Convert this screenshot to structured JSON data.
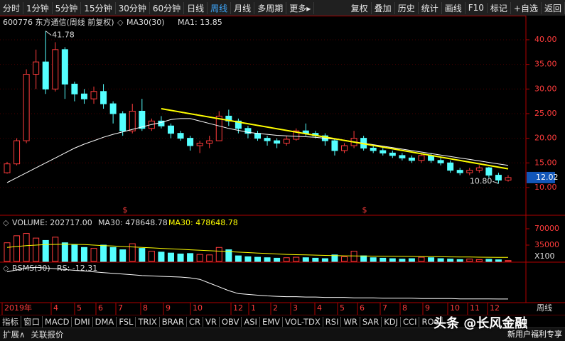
{
  "toolbar": {
    "periods": [
      "分时",
      "1分钟",
      "5分钟",
      "15分钟",
      "30分钟",
      "60分钟",
      "日线",
      "周线",
      "月线",
      "多周期",
      "更多▸"
    ],
    "tools": [
      "复权",
      "叠加",
      "历史",
      "统计",
      "画线",
      "F10",
      "标记",
      "+自选",
      "返回"
    ]
  },
  "chart_data": [
    {
      "type": "candlestick",
      "title": "600776 东方通信(周线 前复权)",
      "ma_title": "MA30(30)",
      "ma_value": "MA1: 13.85",
      "open": [
        13.0,
        14.8,
        19.5,
        33.0,
        35.5,
        30.0,
        38.0,
        31.0,
        29.0,
        28.0,
        29.5,
        27.0,
        25.0,
        21.5,
        25.5,
        22.0,
        23.5,
        22.5,
        21.0,
        20.0,
        18.5,
        19.0,
        19.5,
        24.5,
        23.5,
        22.0,
        21.0,
        20.0,
        19.5,
        19.0,
        19.8,
        21.5,
        21.0,
        20.5,
        19.5,
        17.5,
        18.5,
        20.0,
        18.0,
        17.5,
        17.0,
        16.5,
        16.0,
        15.5,
        16.5,
        15.5,
        15.0,
        13.5,
        13.0,
        13.5,
        14.0,
        12.5,
        11.5
      ],
      "high": [
        15.2,
        20.0,
        34.0,
        38.0,
        41.78,
        39.5,
        38.5,
        31.5,
        30.0,
        30.5,
        31.0,
        27.5,
        25.5,
        27.0,
        28.0,
        24.0,
        24.5,
        23.0,
        21.5,
        20.5,
        19.5,
        20.5,
        25.5,
        25.8,
        24.0,
        22.5,
        21.5,
        20.5,
        20.0,
        20.5,
        22.0,
        23.0,
        21.5,
        21.0,
        20.0,
        19.0,
        21.5,
        20.5,
        18.5,
        18.0,
        17.5,
        17.0,
        16.5,
        17.0,
        17.0,
        16.0,
        15.5,
        14.0,
        14.0,
        14.5,
        14.2,
        13.0,
        12.5
      ],
      "low": [
        12.8,
        14.5,
        19.0,
        30.0,
        29.0,
        29.5,
        28.0,
        27.5,
        27.0,
        27.0,
        26.0,
        23.0,
        20.5,
        21.0,
        21.5,
        21.5,
        22.0,
        20.0,
        19.5,
        17.5,
        17.0,
        18.0,
        19.5,
        22.5,
        21.0,
        20.0,
        19.5,
        18.5,
        18.0,
        18.5,
        19.5,
        20.5,
        20.0,
        18.5,
        16.5,
        17.0,
        18.0,
        17.5,
        17.0,
        16.5,
        16.0,
        15.5,
        15.0,
        15.0,
        15.0,
        14.5,
        13.0,
        12.5,
        12.5,
        13.0,
        12.0,
        10.8,
        11.2
      ],
      "close": [
        14.8,
        19.5,
        33.0,
        35.5,
        30.0,
        38.0,
        31.0,
        29.0,
        28.0,
        29.5,
        27.0,
        25.0,
        21.5,
        25.5,
        22.0,
        23.5,
        22.5,
        21.0,
        20.0,
        18.5,
        19.0,
        19.5,
        24.5,
        23.5,
        22.0,
        21.0,
        20.0,
        19.5,
        19.0,
        19.8,
        21.5,
        21.0,
        20.5,
        19.5,
        17.5,
        18.5,
        20.0,
        18.0,
        17.5,
        17.0,
        16.5,
        16.0,
        15.5,
        16.5,
        15.5,
        15.0,
        13.5,
        13.0,
        13.5,
        14.0,
        12.5,
        11.5,
        12.02
      ],
      "ma30": [
        11,
        12,
        13,
        14,
        15,
        16,
        17,
        18,
        18.8,
        19.5,
        20.2,
        20.8,
        21.3,
        21.8,
        22.3,
        22.8,
        23.2,
        23.8,
        24.0,
        24.0,
        23.5,
        23.0,
        22.5,
        22.0,
        21.6,
        21.2,
        21.0,
        20.8,
        20.6,
        20.5,
        20.4,
        20.3,
        20.2,
        20.0,
        19.8,
        19.6,
        19.3,
        19.0,
        18.7,
        18.4,
        18.1,
        17.8,
        17.5,
        17.2,
        16.9,
        16.6,
        16.3,
        16.0,
        15.7,
        15.4,
        15.1,
        14.8,
        14.5
      ],
      "up_color": "#ff3c3c",
      "down_color": "#54ffff",
      "ma_color": "#ffffff",
      "trendline": {
        "x": [
          16,
          52
        ],
        "y": [
          26.0,
          13.8
        ],
        "color": "#ffff00"
      },
      "annotations": {
        "high": 41.78,
        "low": {
          "value": 10.8,
          "label": "10.80"
        },
        "last": 12.02
      },
      "events": [
        "$",
        "$"
      ],
      "ylim": [
        4.8,
        44.9
      ],
      "yticks": [
        {
          "value": 40,
          "label": "40.00"
        },
        {
          "value": 35,
          "label": "35.00"
        },
        {
          "value": 30,
          "label": "30.00"
        },
        {
          "value": 25,
          "label": "25.00"
        },
        {
          "value": 20,
          "label": "20.00"
        },
        {
          "value": 15,
          "label": "15.00"
        },
        {
          "value": 10,
          "label": "10.00"
        }
      ]
    },
    {
      "type": "bar",
      "title": "VOLUME: 202717.00",
      "ma_labels": [
        "MA30: 478648.78",
        "MA30: 478648.78"
      ],
      "unit": "X100",
      "values": [
        40000,
        55000,
        60000,
        50000,
        45000,
        52000,
        40000,
        35000,
        30000,
        28000,
        35000,
        30000,
        25000,
        38000,
        28000,
        22000,
        20000,
        18000,
        16000,
        17000,
        15000,
        14000,
        30000,
        25000,
        12000,
        10000,
        9000,
        8000,
        7000,
        8000,
        9000,
        8000,
        7000,
        6000,
        14000,
        10000,
        22000,
        12000,
        8000,
        7000,
        6000,
        5000,
        6000,
        9000,
        8000,
        6000,
        5000,
        4000,
        5000,
        4000,
        4500,
        3500,
        2000
      ],
      "ma": [
        30000,
        32000,
        34000,
        35000,
        36000,
        36500,
        37000,
        36500,
        36000,
        35000,
        34000,
        33000,
        32000,
        31000,
        30000,
        29000,
        28000,
        27000,
        26000,
        25000,
        24000,
        23000,
        22000,
        21000,
        20000,
        19000,
        18000,
        17000,
        16000,
        15000,
        14500,
        14000,
        13500,
        13000,
        12500,
        12000,
        11800,
        11600,
        11400,
        11200,
        11000,
        10800,
        10600,
        10400,
        10200,
        10000,
        9800,
        9600,
        9400,
        9200,
        9000,
        8800,
        8600
      ],
      "ma_color": "#ffff00",
      "ylim": [
        0,
        95870
      ],
      "yticks": [
        70000,
        35000
      ]
    },
    {
      "type": "line",
      "title": "RSMS(30)",
      "value_label": "RS: -12.31",
      "color": "#ffffff",
      "values": [
        60,
        65,
        70,
        72,
        70,
        68,
        66,
        64,
        62,
        60,
        58,
        56,
        54,
        52,
        50,
        49,
        48,
        47,
        46,
        44,
        40,
        30,
        20,
        10,
        2,
        0,
        -2,
        -4,
        -5,
        -6,
        -6,
        -7,
        -7,
        -8,
        -8,
        -8,
        -9,
        -9,
        -9,
        -10,
        -10,
        -10,
        -10,
        -11,
        -11,
        -11,
        -11,
        -12,
        -12,
        -12,
        -12,
        -12.2,
        -12.31
      ],
      "ylim": [
        -20,
        80
      ]
    }
  ],
  "x_axis": {
    "months": [
      "2019年",
      "4",
      "5",
      "6",
      "7",
      "8",
      "9",
      "10",
      "12",
      "1",
      "2",
      "3",
      "4",
      "5",
      "6",
      "7",
      "8",
      "9",
      "10",
      "11",
      "12"
    ],
    "period": "周线"
  },
  "indicator_tabs": [
    "指标",
    "窗口",
    "MACD",
    "DMI",
    "DMA",
    "FSL",
    "TRIX",
    "BRAR",
    "CR",
    "VR",
    "OBV",
    "ASI",
    "EMV",
    "VOL-TDX",
    "RSI",
    "WR",
    "SAR",
    "KDJ",
    "CCI",
    "ROC"
  ],
  "bottom_bar": {
    "items": [
      "扩展∧",
      "关联报价"
    ],
    "promo": "新用户福利专享"
  },
  "watermark": "头条 @长风金融"
}
